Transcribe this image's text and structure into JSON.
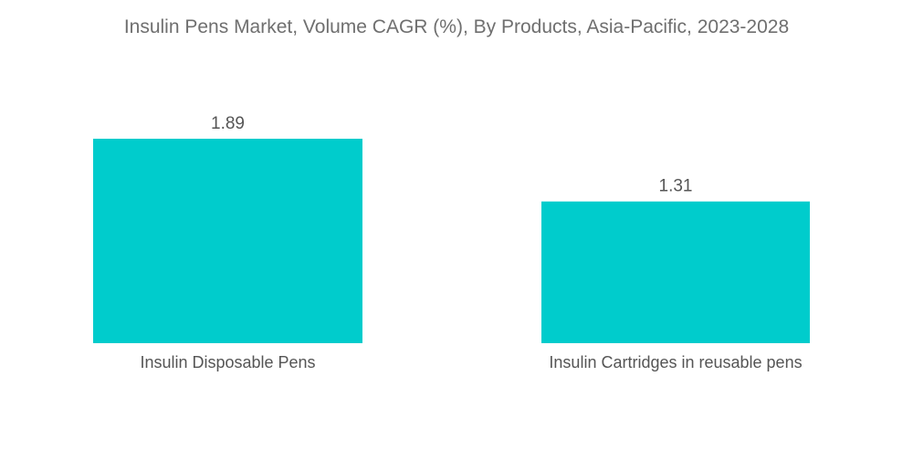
{
  "chart_data": {
    "type": "bar",
    "title": "Insulin Pens Market, Volume CAGR (%), By Products, Asia-Pacific, 2023-2028",
    "categories": [
      "Insulin Disposable Pens",
      "Insulin Cartridges in reusable pens"
    ],
    "values": [
      1.89,
      1.31
    ],
    "data_labels": [
      "1.89",
      "1.31"
    ],
    "ylim": [
      0,
      2.0
    ],
    "grid": false,
    "bar_color": "#00cccc"
  }
}
